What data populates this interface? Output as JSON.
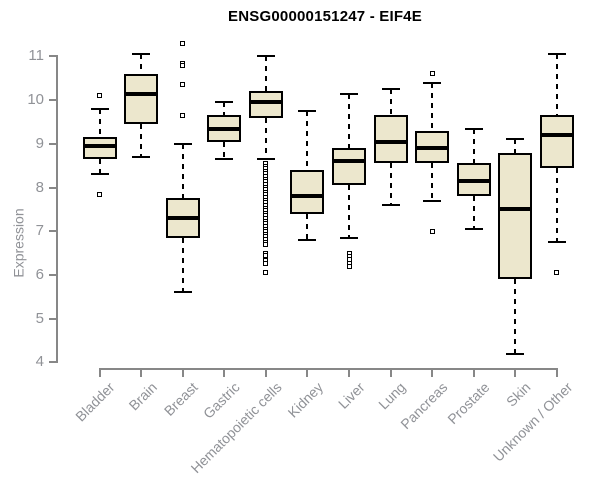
{
  "chart_data": {
    "type": "boxplot",
    "title": "ENSG00000151247 - EIF4E",
    "ylabel": "Expression",
    "xlabel": "",
    "ylim": [
      4,
      11
    ],
    "y_ticks": [
      4,
      5,
      6,
      7,
      8,
      9,
      10,
      11
    ],
    "grid": false,
    "legend": "none",
    "colors": {
      "box_fill": "#ece7cd",
      "box_stroke": "#000000",
      "median": "#000000",
      "whisker": "#000000",
      "axis_line": "#878787",
      "axis_text": "#909297",
      "title_text": "#000000",
      "background": "#ffffff"
    },
    "categories": [
      "Bladder",
      "Brain",
      "Breast",
      "Gastric",
      "Hematopoietic cells",
      "Kidney",
      "Liver",
      "Lung",
      "Pancreas",
      "Prostate",
      "Skin",
      "Unknown / Other"
    ],
    "series": [
      {
        "label": "Bladder",
        "whisker_low": 8.3,
        "q1": 8.65,
        "median": 8.95,
        "q3": 9.15,
        "whisker_high": 9.8,
        "outliers": [
          10.1,
          7.85
        ]
      },
      {
        "label": "Brain",
        "whisker_low": 8.7,
        "q1": 9.45,
        "median": 10.15,
        "q3": 10.6,
        "whisker_high": 11.05,
        "outliers": []
      },
      {
        "label": "Breast",
        "whisker_low": 5.6,
        "q1": 6.85,
        "median": 7.3,
        "q3": 7.75,
        "whisker_high": 9.0,
        "outliers": [
          11.3,
          10.84,
          10.8,
          10.35,
          9.65
        ]
      },
      {
        "label": "Gastric",
        "whisker_low": 8.65,
        "q1": 9.05,
        "median": 9.35,
        "q3": 9.65,
        "whisker_high": 9.95,
        "outliers": []
      },
      {
        "label": "Hematopoietic cells",
        "whisker_low": 8.65,
        "q1": 9.6,
        "median": 9.95,
        "q3": 10.2,
        "whisker_high": 11.0,
        "outliers": [
          8.55,
          8.49,
          8.43,
          8.37,
          8.31,
          8.25,
          8.19,
          8.13,
          8.07,
          8.01,
          7.95,
          7.89,
          7.83,
          7.77,
          7.71,
          7.65,
          7.59,
          7.53,
          7.47,
          7.41,
          7.35,
          7.29,
          7.23,
          7.17,
          7.11,
          7.05,
          6.99,
          6.93,
          6.87,
          6.81,
          6.75,
          6.69,
          6.5,
          6.44,
          6.32,
          6.27,
          6.05
        ]
      },
      {
        "label": "Kidney",
        "whisker_low": 6.8,
        "q1": 7.4,
        "median": 7.8,
        "q3": 8.4,
        "whisker_high": 9.75,
        "outliers": []
      },
      {
        "label": "Liver",
        "whisker_low": 6.85,
        "q1": 8.05,
        "median": 8.6,
        "q3": 8.9,
        "whisker_high": 10.15,
        "outliers": [
          6.5,
          6.42,
          6.35,
          6.27,
          6.2
        ]
      },
      {
        "label": "Lung",
        "whisker_low": 7.6,
        "q1": 8.55,
        "median": 9.05,
        "q3": 9.65,
        "whisker_high": 10.25,
        "outliers": []
      },
      {
        "label": "Pancreas",
        "whisker_low": 7.7,
        "q1": 8.55,
        "median": 8.9,
        "q3": 9.3,
        "whisker_high": 10.4,
        "outliers": [
          10.6,
          7.0
        ]
      },
      {
        "label": "Prostate",
        "whisker_low": 7.05,
        "q1": 7.8,
        "median": 8.15,
        "q3": 8.55,
        "whisker_high": 9.35,
        "outliers": []
      },
      {
        "label": "Skin",
        "whisker_low": 4.2,
        "q1": 5.9,
        "median": 7.5,
        "q3": 8.8,
        "whisker_high": 9.1,
        "outliers": []
      },
      {
        "label": "Unknown / Other",
        "whisker_low": 6.75,
        "q1": 8.45,
        "median": 9.2,
        "q3": 9.65,
        "whisker_high": 11.05,
        "outliers": [
          6.05
        ]
      }
    ]
  }
}
